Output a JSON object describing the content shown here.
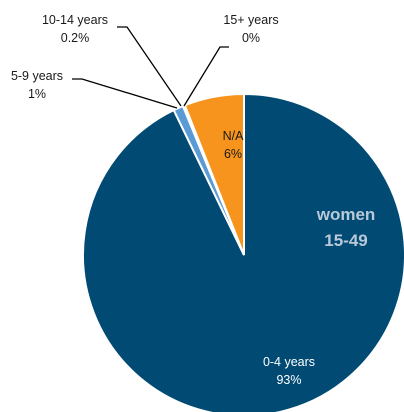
{
  "chart_data": {
    "type": "pie",
    "title": "",
    "center_label": [
      "women",
      "15-49"
    ],
    "slices": [
      {
        "label": "0-4 years",
        "value": 93,
        "value_label": "93%",
        "color": "#004a74"
      },
      {
        "label": "5-9 years",
        "value": 1,
        "value_label": "1%",
        "color": "#5b9bd5"
      },
      {
        "label": "10-14 years",
        "value": 0.2,
        "value_label": "0.2%",
        "color": "#a9c7e8"
      },
      {
        "label": "15+ years",
        "value": 0,
        "value_label": "0%",
        "color": "#7a7a7a"
      },
      {
        "label": "N/A",
        "value": 6,
        "value_label": "6%",
        "color": "#f7941d"
      }
    ],
    "legend": "none"
  }
}
